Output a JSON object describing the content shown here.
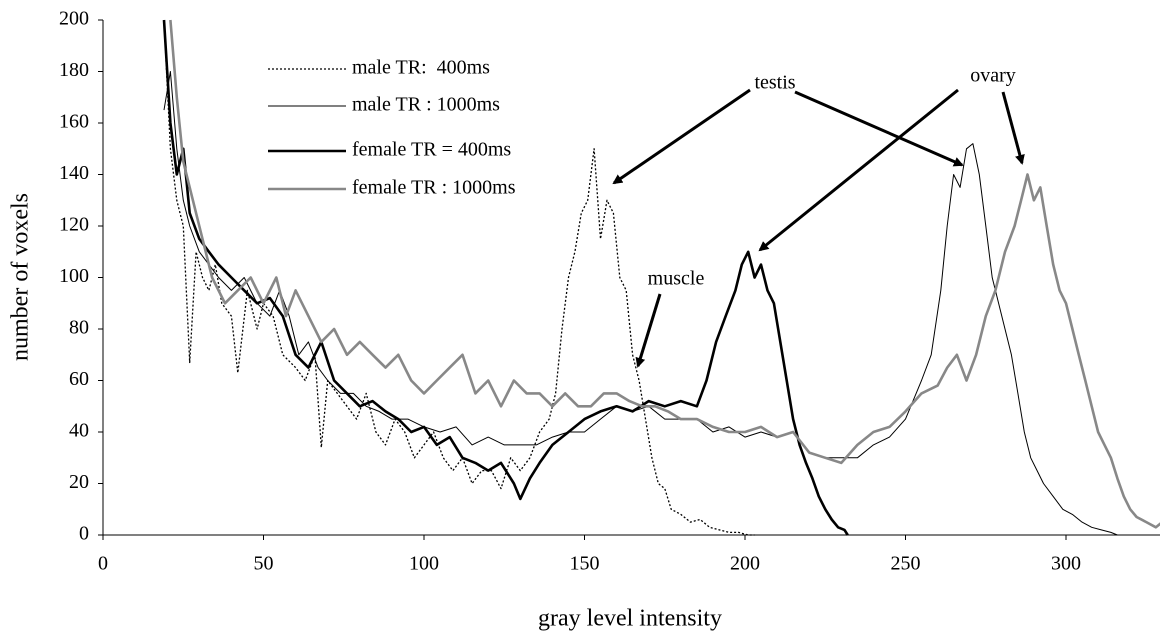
{
  "chart_data": {
    "type": "line",
    "x_label": "gray level intensity",
    "y_label": "number of voxels",
    "xlim": [
      0,
      330
    ],
    "ylim": [
      0,
      200
    ],
    "xticks": [
      0,
      50,
      100,
      150,
      200,
      250,
      300
    ],
    "yticks": [
      0,
      20,
      40,
      60,
      80,
      100,
      120,
      140,
      160,
      180,
      200
    ],
    "grid": false,
    "annotations": [
      "testis",
      "ovary",
      "muscle"
    ],
    "series": [
      {
        "name": "male TR:  400ms",
        "color": "#000000",
        "dash": "dotted",
        "width": 1.3,
        "x": [
          19,
          21,
          23,
          25,
          27,
          29,
          31,
          33,
          35,
          37,
          40,
          42,
          45,
          48,
          50,
          53,
          56,
          60,
          63,
          66,
          68,
          70,
          73,
          76,
          79,
          82,
          85,
          88,
          91,
          94,
          97,
          100,
          103,
          106,
          109,
          112,
          115,
          118,
          121,
          124,
          127,
          130,
          133,
          136,
          139,
          141,
          143,
          145,
          147,
          149,
          151,
          153,
          155,
          157,
          159,
          161,
          163,
          165,
          167,
          169,
          171,
          173,
          175,
          177,
          180,
          183,
          186,
          189,
          192,
          195,
          198,
          201,
          203
        ],
        "values": [
          200,
          150,
          130,
          120,
          67,
          110,
          100,
          95,
          105,
          90,
          85,
          63,
          95,
          80,
          90,
          85,
          70,
          65,
          60,
          70,
          34,
          60,
          55,
          50,
          45,
          55,
          40,
          35,
          45,
          40,
          30,
          35,
          40,
          30,
          25,
          30,
          20,
          25,
          25,
          18,
          30,
          25,
          30,
          40,
          45,
          55,
          80,
          100,
          110,
          125,
          130,
          150,
          115,
          130,
          125,
          100,
          95,
          70,
          60,
          45,
          30,
          20,
          18,
          10,
          8,
          5,
          6,
          3,
          2,
          1,
          1,
          0,
          0
        ]
      },
      {
        "name": "male TR : 1000ms",
        "color": "#000000",
        "dash": "solid",
        "width": 1,
        "x": [
          19,
          21,
          23,
          25,
          27,
          30,
          33,
          36,
          40,
          44,
          48,
          52,
          55,
          58,
          61,
          64,
          67,
          70,
          74,
          78,
          82,
          86,
          90,
          95,
          100,
          105,
          110,
          115,
          120,
          125,
          130,
          135,
          140,
          145,
          150,
          155,
          160,
          165,
          170,
          175,
          180,
          185,
          190,
          195,
          200,
          205,
          210,
          215,
          220,
          225,
          230,
          235,
          240,
          245,
          250,
          255,
          258,
          261,
          263,
          265,
          267,
          269,
          271,
          273,
          275,
          277,
          279,
          281,
          283,
          285,
          287,
          289,
          291,
          293,
          296,
          299,
          302,
          305,
          308,
          311,
          314,
          316
        ],
        "values": [
          165,
          180,
          150,
          130,
          120,
          110,
          105,
          100,
          95,
          100,
          90,
          85,
          95,
          85,
          70,
          75,
          65,
          60,
          55,
          55,
          50,
          48,
          45,
          45,
          42,
          40,
          42,
          35,
          38,
          35,
          35,
          35,
          38,
          40,
          40,
          45,
          50,
          48,
          50,
          45,
          45,
          45,
          40,
          42,
          38,
          40,
          38,
          40,
          32,
          30,
          30,
          30,
          35,
          38,
          45,
          60,
          70,
          95,
          120,
          140,
          135,
          150,
          152,
          140,
          120,
          100,
          90,
          80,
          70,
          55,
          40,
          30,
          25,
          20,
          15,
          10,
          8,
          5,
          3,
          2,
          1,
          0
        ]
      },
      {
        "name": "female TR = 400ms",
        "color": "#000000",
        "dash": "solid",
        "width": 2.6,
        "x": [
          19,
          21,
          23,
          25,
          27,
          30,
          33,
          36,
          40,
          44,
          48,
          52,
          56,
          60,
          64,
          68,
          72,
          76,
          80,
          84,
          88,
          92,
          96,
          100,
          104,
          108,
          112,
          116,
          120,
          124,
          128,
          130,
          133,
          136,
          140,
          145,
          150,
          155,
          160,
          165,
          170,
          175,
          180,
          185,
          188,
          191,
          194,
          197,
          199,
          201,
          203,
          205,
          207,
          209,
          211,
          213,
          215,
          217,
          219,
          221,
          223,
          225,
          227,
          229,
          231,
          232
        ],
        "values": [
          200,
          160,
          140,
          150,
          125,
          115,
          110,
          105,
          100,
          95,
          90,
          92,
          85,
          70,
          65,
          75,
          60,
          55,
          50,
          52,
          48,
          45,
          40,
          42,
          35,
          38,
          30,
          28,
          25,
          28,
          20,
          14,
          22,
          28,
          35,
          40,
          45,
          48,
          50,
          48,
          52,
          50,
          52,
          50,
          60,
          75,
          85,
          95,
          105,
          110,
          100,
          105,
          95,
          90,
          75,
          60,
          45,
          35,
          28,
          22,
          15,
          10,
          6,
          3,
          2,
          0
        ]
      },
      {
        "name": "female TR : 1000ms",
        "color": "#888888",
        "dash": "solid",
        "width": 2.6,
        "x": [
          21,
          23,
          25,
          28,
          31,
          34,
          38,
          42,
          46,
          50,
          54,
          57,
          60,
          64,
          68,
          72,
          76,
          80,
          84,
          88,
          92,
          96,
          100,
          104,
          108,
          112,
          116,
          120,
          124,
          128,
          132,
          136,
          140,
          144,
          148,
          152,
          156,
          160,
          164,
          168,
          172,
          176,
          180,
          185,
          190,
          195,
          200,
          205,
          210,
          215,
          220,
          225,
          230,
          235,
          240,
          245,
          250,
          255,
          260,
          263,
          266,
          269,
          272,
          275,
          278,
          281,
          284,
          286,
          288,
          290,
          292,
          294,
          296,
          298,
          300,
          302,
          304,
          306,
          308,
          310,
          312,
          314,
          316,
          318,
          320,
          322,
          325,
          328,
          330
        ],
        "values": [
          200,
          170,
          145,
          130,
          115,
          100,
          90,
          95,
          100,
          90,
          100,
          85,
          95,
          85,
          75,
          80,
          70,
          75,
          70,
          65,
          70,
          60,
          55,
          60,
          65,
          70,
          55,
          60,
          50,
          60,
          55,
          55,
          50,
          55,
          50,
          50,
          55,
          55,
          52,
          50,
          50,
          48,
          45,
          45,
          42,
          40,
          40,
          42,
          38,
          40,
          32,
          30,
          28,
          35,
          40,
          42,
          48,
          55,
          58,
          65,
          70,
          60,
          70,
          85,
          95,
          110,
          120,
          130,
          140,
          130,
          135,
          120,
          105,
          95,
          90,
          80,
          70,
          60,
          50,
          40,
          35,
          30,
          22,
          15,
          10,
          7,
          5,
          3,
          5
        ]
      }
    ]
  }
}
